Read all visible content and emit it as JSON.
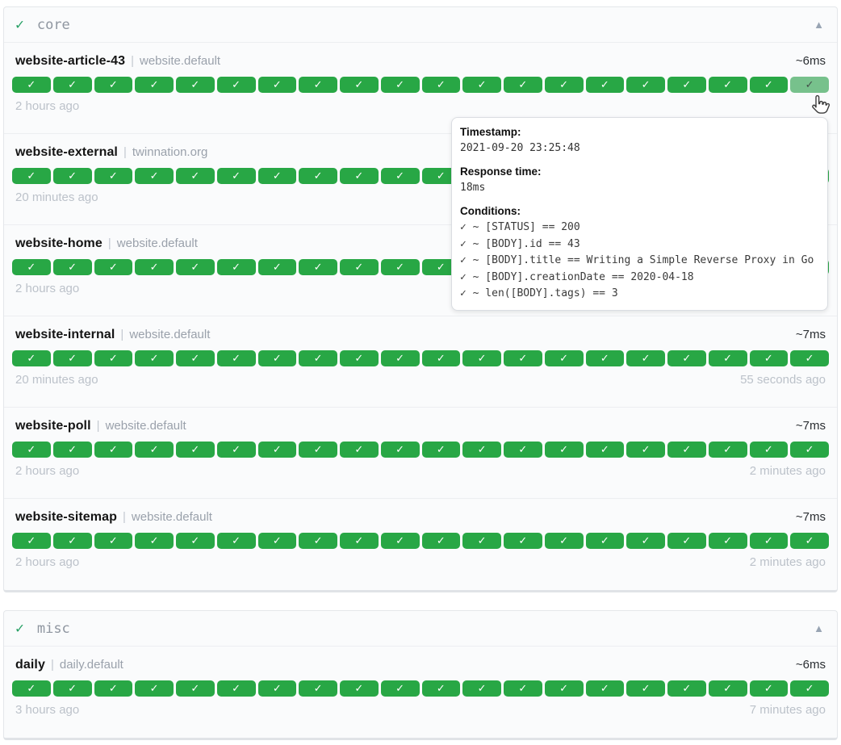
{
  "labels": {
    "pipe": "|"
  },
  "icons": {
    "check": "✓",
    "collapse": "▲"
  },
  "colors": {
    "badge_green": "#28a745",
    "badge_green_hover": "#77c18c",
    "header_check_green": "#27a065"
  },
  "groups": [
    {
      "name": "core",
      "status_icon": "✓",
      "collapse_icon": "▲",
      "services": [
        {
          "name": "website-article-43",
          "suffix": "website.default",
          "response_time": "~6ms",
          "badge_count": 20,
          "hovered_last": true,
          "oldest": "2 hours ago",
          "newest": ""
        },
        {
          "name": "website-external",
          "suffix": "twinnation.org",
          "response_time": "",
          "badge_count": 20,
          "hovered_last": false,
          "oldest": "20 minutes ago",
          "newest": ""
        },
        {
          "name": "website-home",
          "suffix": "website.default",
          "response_time": "",
          "badge_count": 20,
          "hovered_last": false,
          "oldest": "2 hours ago",
          "newest": ""
        },
        {
          "name": "website-internal",
          "suffix": "website.default",
          "response_time": "~7ms",
          "badge_count": 20,
          "hovered_last": false,
          "oldest": "20 minutes ago",
          "newest": "55 seconds ago"
        },
        {
          "name": "website-poll",
          "suffix": "website.default",
          "response_time": "~7ms",
          "badge_count": 20,
          "hovered_last": false,
          "oldest": "2 hours ago",
          "newest": "2 minutes ago"
        },
        {
          "name": "website-sitemap",
          "suffix": "website.default",
          "response_time": "~7ms",
          "badge_count": 20,
          "hovered_last": false,
          "oldest": "2 hours ago",
          "newest": "2 minutes ago"
        }
      ]
    },
    {
      "name": "misc",
      "status_icon": "✓",
      "collapse_icon": "▲",
      "services": [
        {
          "name": "daily",
          "suffix": "daily.default",
          "response_time": "~6ms",
          "badge_count": 20,
          "hovered_last": false,
          "oldest": "3 hours ago",
          "newest": "7 minutes ago"
        }
      ]
    }
  ],
  "tooltip": {
    "timestamp_label": "Timestamp:",
    "timestamp": "2021-09-20 23:25:48",
    "response_time_label": "Response time:",
    "response_time": "18ms",
    "conditions_label": "Conditions:",
    "conditions": [
      "✓ ~ [STATUS] == 200",
      "✓ ~ [BODY].id == 43",
      "✓ ~ [BODY].title == Writing a Simple Reverse Proxy in Go",
      "✓ ~ [BODY].creationDate == 2020-04-18",
      "✓ ~ len([BODY].tags) == 3"
    ]
  }
}
